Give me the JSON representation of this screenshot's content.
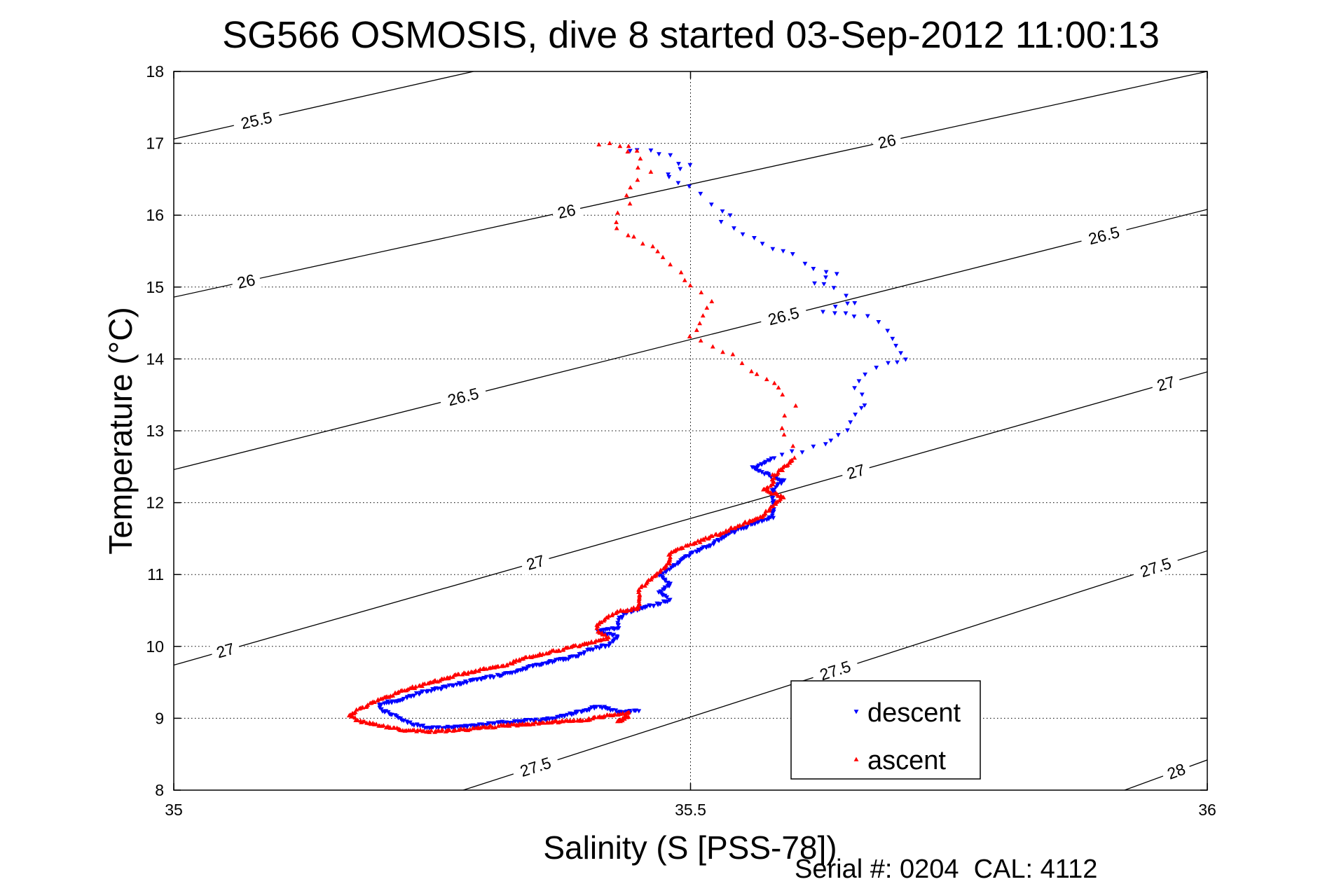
{
  "chart_data": {
    "type": "scatter",
    "title": "SG566 OSMOSIS, dive 8 started 03-Sep-2012 11:00:13",
    "xlabel": "Salinity (S [PSS-78])",
    "ylabel": "Temperature (°C)",
    "xlim": [
      35,
      36
    ],
    "ylim": [
      8,
      18
    ],
    "x_ticks": [
      "35",
      "35.5",
      "36"
    ],
    "y_ticks": [
      "8",
      "9",
      "10",
      "11",
      "12",
      "13",
      "14",
      "15",
      "16",
      "17",
      "18"
    ],
    "grid": true,
    "legend_position": "bottom-right",
    "footer": "Serial #: 0204  CAL: 4112",
    "isopycnals": [
      {
        "sigma": 25.5,
        "label": "25.5",
        "points": [
          [
            35.0,
            17.06
          ],
          [
            35.29,
            18.0
          ]
        ],
        "labels_at": [
          [
            35.08,
            17.28
          ]
        ]
      },
      {
        "sigma": 26.0,
        "label": "26",
        "points": [
          [
            35.0,
            14.86
          ],
          [
            36.0,
            18.0
          ]
        ],
        "labels_at": [
          [
            35.07,
            15.08
          ],
          [
            35.38,
            16.1
          ],
          [
            35.69,
            17.1
          ]
        ]
      },
      {
        "sigma": 26.5,
        "label": "26.5",
        "points": [
          [
            35.0,
            12.46
          ],
          [
            36.0,
            16.08
          ]
        ],
        "labels_at": [
          [
            35.28,
            13.55
          ],
          [
            35.59,
            14.6
          ],
          [
            35.9,
            15.65
          ]
        ]
      },
      {
        "sigma": 27.0,
        "label": "27",
        "points": [
          [
            35.0,
            9.74
          ],
          [
            36.0,
            13.82
          ]
        ],
        "labels_at": [
          [
            35.05,
            9.95
          ],
          [
            35.35,
            11.05
          ],
          [
            35.66,
            12.15
          ],
          [
            35.96,
            13.25
          ]
        ]
      },
      {
        "sigma": 27.5,
        "label": "27.5",
        "points": [
          [
            35.28,
            8.0
          ],
          [
            36.0,
            11.33
          ]
        ],
        "labels_at": [
          [
            35.35,
            8.25
          ],
          [
            35.64,
            9.55
          ],
          [
            35.95,
            10.78
          ]
        ]
      },
      {
        "sigma": 28.0,
        "label": "28",
        "points": [
          [
            35.92,
            8.0
          ],
          [
            36.0,
            8.42
          ]
        ],
        "labels_at": [
          [
            35.97,
            8.22
          ]
        ]
      }
    ],
    "series": [
      {
        "name": "descent",
        "color": "#0000ff",
        "marker": "triangle-down",
        "path": [
          [
            35.44,
            16.92
          ],
          [
            35.46,
            16.88
          ],
          [
            35.48,
            16.82
          ],
          [
            35.49,
            16.74
          ],
          [
            35.5,
            16.68
          ],
          [
            35.48,
            16.58
          ],
          [
            35.48,
            16.52
          ],
          [
            35.5,
            16.42
          ],
          [
            35.51,
            16.28
          ],
          [
            35.52,
            16.14
          ],
          [
            35.54,
            15.98
          ],
          [
            35.53,
            15.88
          ],
          [
            35.55,
            15.74
          ],
          [
            35.57,
            15.6
          ],
          [
            35.6,
            15.44
          ],
          [
            35.61,
            15.3
          ],
          [
            35.64,
            15.2
          ],
          [
            35.62,
            15.08
          ],
          [
            35.64,
            14.98
          ],
          [
            35.66,
            14.8
          ],
          [
            35.63,
            14.68
          ],
          [
            35.67,
            14.58
          ],
          [
            35.69,
            14.4
          ],
          [
            35.7,
            14.2
          ],
          [
            35.71,
            14.02
          ],
          [
            35.69,
            13.92
          ],
          [
            35.67,
            13.78
          ],
          [
            35.66,
            13.58
          ],
          [
            35.67,
            13.38
          ],
          [
            35.66,
            13.2
          ],
          [
            35.65,
            13.02
          ],
          [
            35.63,
            12.82
          ],
          [
            35.61,
            12.72
          ],
          [
            35.58,
            12.62
          ],
          [
            35.56,
            12.48
          ],
          [
            35.59,
            12.3
          ],
          [
            35.58,
            12.18
          ],
          [
            35.58,
            12.06
          ],
          [
            35.58,
            11.92
          ],
          [
            35.58,
            11.8
          ],
          [
            35.56,
            11.7
          ],
          [
            35.54,
            11.58
          ],
          [
            35.52,
            11.42
          ],
          [
            35.5,
            11.28
          ],
          [
            35.49,
            11.18
          ],
          [
            35.48,
            11.08
          ],
          [
            35.47,
            10.98
          ],
          [
            35.48,
            10.86
          ],
          [
            35.47,
            10.76
          ],
          [
            35.48,
            10.64
          ],
          [
            35.46,
            10.56
          ],
          [
            35.44,
            10.48
          ],
          [
            35.43,
            10.38
          ],
          [
            35.43,
            10.26
          ],
          [
            35.41,
            10.2
          ],
          [
            35.43,
            10.14
          ],
          [
            35.42,
            10.02
          ],
          [
            35.4,
            9.94
          ],
          [
            35.39,
            9.86
          ],
          [
            35.37,
            9.8
          ],
          [
            35.35,
            9.74
          ],
          [
            35.33,
            9.64
          ],
          [
            35.3,
            9.56
          ],
          [
            35.27,
            9.46
          ],
          [
            35.24,
            9.36
          ],
          [
            35.22,
            9.26
          ],
          [
            35.2,
            9.2
          ],
          [
            35.2,
            9.12
          ],
          [
            35.21,
            9.06
          ],
          [
            35.22,
            9.0
          ],
          [
            35.23,
            8.92
          ],
          [
            35.25,
            8.86
          ],
          [
            35.28,
            8.88
          ],
          [
            35.32,
            8.94
          ],
          [
            35.36,
            8.98
          ],
          [
            35.39,
            9.08
          ],
          [
            35.41,
            9.16
          ],
          [
            35.42,
            9.14
          ],
          [
            35.43,
            9.08
          ],
          [
            35.45,
            9.1
          ]
        ]
      },
      {
        "name": "ascent",
        "color": "#ff0000",
        "marker": "triangle-up",
        "path": [
          [
            35.41,
            17.0
          ],
          [
            35.43,
            16.98
          ],
          [
            35.45,
            16.92
          ],
          [
            35.44,
            16.86
          ],
          [
            35.45,
            16.78
          ],
          [
            35.45,
            16.68
          ],
          [
            35.46,
            16.58
          ],
          [
            35.45,
            16.48
          ],
          [
            35.44,
            16.38
          ],
          [
            35.44,
            16.26
          ],
          [
            35.44,
            16.16
          ],
          [
            35.43,
            16.06
          ],
          [
            35.43,
            15.92
          ],
          [
            35.43,
            15.8
          ],
          [
            35.47,
            15.5
          ],
          [
            35.48,
            15.34
          ],
          [
            35.49,
            15.2
          ],
          [
            35.5,
            15.04
          ],
          [
            35.51,
            14.9
          ],
          [
            35.52,
            14.78
          ],
          [
            35.51,
            14.62
          ],
          [
            35.51,
            14.5
          ],
          [
            35.5,
            14.34
          ],
          [
            35.52,
            14.18
          ],
          [
            35.54,
            14.06
          ],
          [
            35.55,
            13.92
          ],
          [
            35.58,
            13.66
          ],
          [
            35.59,
            13.5
          ],
          [
            35.6,
            13.36
          ],
          [
            35.59,
            13.22
          ],
          [
            35.59,
            13.06
          ],
          [
            35.59,
            12.92
          ],
          [
            35.6,
            12.78
          ],
          [
            35.6,
            12.62
          ],
          [
            35.59,
            12.48
          ],
          [
            35.58,
            12.38
          ],
          [
            35.58,
            12.26
          ],
          [
            35.57,
            12.18
          ],
          [
            35.59,
            12.08
          ],
          [
            35.58,
            11.96
          ],
          [
            35.57,
            11.82
          ],
          [
            35.55,
            11.7
          ],
          [
            35.53,
            11.58
          ],
          [
            35.5,
            11.42
          ],
          [
            35.48,
            11.3
          ],
          [
            35.48,
            11.16
          ],
          [
            35.47,
            11.04
          ],
          [
            35.46,
            10.92
          ],
          [
            35.45,
            10.78
          ],
          [
            35.45,
            10.66
          ],
          [
            35.45,
            10.54
          ],
          [
            35.43,
            10.48
          ],
          [
            35.42,
            10.4
          ],
          [
            35.41,
            10.3
          ],
          [
            35.41,
            10.22
          ],
          [
            35.42,
            10.12
          ],
          [
            35.4,
            10.04
          ],
          [
            35.37,
            9.94
          ],
          [
            35.34,
            9.84
          ],
          [
            35.32,
            9.74
          ],
          [
            35.28,
            9.62
          ],
          [
            35.25,
            9.5
          ],
          [
            35.22,
            9.38
          ],
          [
            35.2,
            9.26
          ],
          [
            35.18,
            9.14
          ],
          [
            35.17,
            9.04
          ],
          [
            35.18,
            8.96
          ],
          [
            35.2,
            8.9
          ],
          [
            35.22,
            8.84
          ],
          [
            35.25,
            8.82
          ],
          [
            35.28,
            8.84
          ],
          [
            35.32,
            8.9
          ],
          [
            35.36,
            8.94
          ],
          [
            35.4,
            8.98
          ],
          [
            35.42,
            9.04
          ],
          [
            35.44,
            9.08
          ],
          [
            35.43,
            8.96
          ],
          [
            35.44,
            9.02
          ]
        ]
      }
    ]
  }
}
